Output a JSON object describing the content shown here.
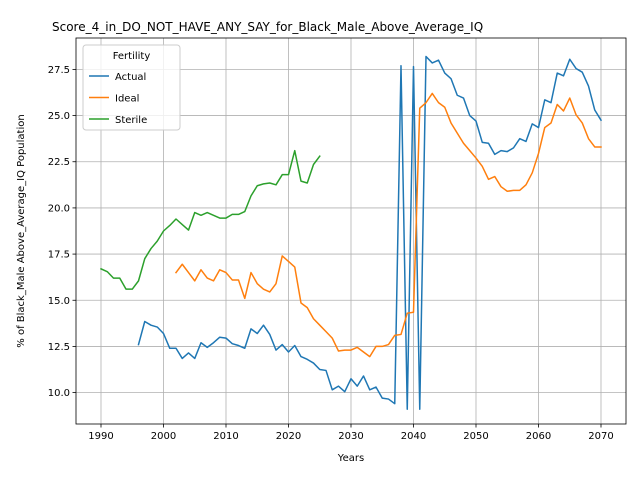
{
  "chart_data": {
    "type": "line",
    "title": "Score_4_in_DO_NOT_HAVE_ANY_SAY_for_Black_Male_Above_Average_IQ",
    "xlabel": "Years",
    "ylabel": "% of Black_Male Above_Average_IQ Population",
    "xlim": [
      1986,
      2074
    ],
    "ylim": [
      8.3,
      29.2
    ],
    "xticks": [
      1990,
      2000,
      2010,
      2020,
      2030,
      2040,
      2050,
      2060,
      2070
    ],
    "yticks": [
      10.0,
      12.5,
      15.0,
      17.5,
      20.0,
      22.5,
      25.0,
      27.5
    ],
    "grid": true,
    "legend": {
      "title": "Fertility",
      "position": "upper-left"
    },
    "series": [
      {
        "name": "Actual",
        "color": "#1f77b4",
        "x": [
          1996,
          1997,
          1998,
          1999,
          2000,
          2001,
          2002,
          2003,
          2004,
          2005,
          2006,
          2007,
          2008,
          2009,
          2010,
          2011,
          2012,
          2013,
          2014,
          2015,
          2016,
          2017,
          2018,
          2019,
          2020,
          2021,
          2022,
          2023,
          2024,
          2025,
          2026,
          2027,
          2028,
          2029,
          2030,
          2031,
          2032,
          2033,
          2034,
          2035,
          2036,
          2037,
          2038,
          2039,
          2040,
          2041,
          2042,
          2043,
          2044,
          2045,
          2046,
          2047,
          2048,
          2049,
          2050,
          2051,
          2052,
          2053,
          2054,
          2055,
          2056,
          2057,
          2058,
          2059,
          2060,
          2061,
          2062,
          2063,
          2064,
          2065,
          2066,
          2067,
          2068,
          2069,
          2070
        ],
        "values": [
          12.6,
          13.85,
          13.65,
          13.55,
          13.2,
          12.4,
          12.4,
          11.85,
          12.15,
          11.85,
          12.7,
          12.45,
          12.7,
          13.0,
          12.95,
          12.65,
          12.55,
          12.4,
          13.45,
          13.2,
          13.65,
          13.15,
          12.3,
          12.6,
          12.2,
          12.55,
          11.95,
          11.8,
          11.6,
          11.25,
          11.2,
          10.15,
          10.35,
          10.05,
          10.75,
          10.35,
          10.9,
          10.15,
          10.3,
          9.7,
          9.65,
          9.4,
          27.7,
          9.1,
          27.65,
          9.1,
          28.2,
          27.85,
          28.0,
          27.3,
          27.0,
          26.1,
          25.95,
          25.0,
          24.7,
          23.55,
          23.5,
          22.9,
          23.1,
          23.05,
          23.25,
          23.75,
          23.6,
          24.55,
          24.35,
          25.85,
          25.7,
          27.3,
          27.15,
          28.05,
          27.55,
          27.35,
          26.6,
          25.3,
          24.75
        ]
      },
      {
        "name": "Ideal",
        "color": "#ff7f0e",
        "x": [
          2002,
          2003,
          2004,
          2005,
          2006,
          2007,
          2008,
          2009,
          2010,
          2011,
          2012,
          2013,
          2014,
          2015,
          2016,
          2017,
          2018,
          2019,
          2020,
          2021,
          2022,
          2023,
          2024,
          2025,
          2026,
          2027,
          2028,
          2029,
          2030,
          2031,
          2032,
          2033,
          2034,
          2035,
          2036,
          2037,
          2038,
          2039,
          2040,
          2041,
          2042,
          2043,
          2044,
          2045,
          2046,
          2047,
          2048,
          2049,
          2050,
          2051,
          2052,
          2053,
          2054,
          2055,
          2056,
          2057,
          2058,
          2059,
          2060,
          2061,
          2062,
          2063,
          2064,
          2065,
          2066,
          2067,
          2068,
          2069,
          2070
        ],
        "values": [
          16.5,
          16.95,
          16.5,
          16.05,
          16.65,
          16.2,
          16.05,
          16.65,
          16.5,
          16.1,
          16.1,
          15.1,
          16.5,
          15.9,
          15.6,
          15.45,
          15.9,
          17.4,
          17.1,
          16.8,
          14.85,
          14.6,
          14.0,
          13.65,
          13.3,
          12.95,
          12.25,
          12.3,
          12.3,
          12.45,
          12.2,
          11.95,
          12.5,
          12.5,
          12.6,
          13.1,
          13.15,
          14.3,
          14.35,
          25.4,
          25.7,
          26.2,
          25.7,
          25.45,
          24.6,
          24.05,
          23.5,
          23.1,
          22.7,
          22.25,
          21.55,
          21.7,
          21.15,
          20.9,
          20.95,
          20.95,
          21.25,
          21.9,
          22.95,
          24.35,
          24.6,
          25.6,
          25.25,
          25.95,
          25.05,
          24.6,
          23.75,
          23.3,
          23.3
        ]
      },
      {
        "name": "Sterile",
        "color": "#2ca02c",
        "x": [
          1990,
          1991,
          1992,
          1993,
          1994,
          1995,
          1996,
          1997,
          1998,
          1999,
          2000,
          2001,
          2002,
          2003,
          2004,
          2005,
          2006,
          2007,
          2008,
          2009,
          2010,
          2011,
          2012,
          2013,
          2014,
          2015,
          2016,
          2017,
          2018,
          2019,
          2020,
          2021,
          2022,
          2023,
          2024,
          2025
        ],
        "values": [
          16.7,
          16.55,
          16.2,
          16.2,
          15.6,
          15.6,
          16.05,
          17.25,
          17.8,
          18.2,
          18.75,
          19.05,
          19.4,
          19.1,
          18.8,
          19.75,
          19.6,
          19.75,
          19.6,
          19.45,
          19.45,
          19.65,
          19.65,
          19.8,
          20.65,
          21.2,
          21.3,
          21.35,
          21.25,
          21.8,
          21.8,
          23.1,
          21.45,
          21.35,
          22.35,
          22.8
        ]
      }
    ]
  }
}
